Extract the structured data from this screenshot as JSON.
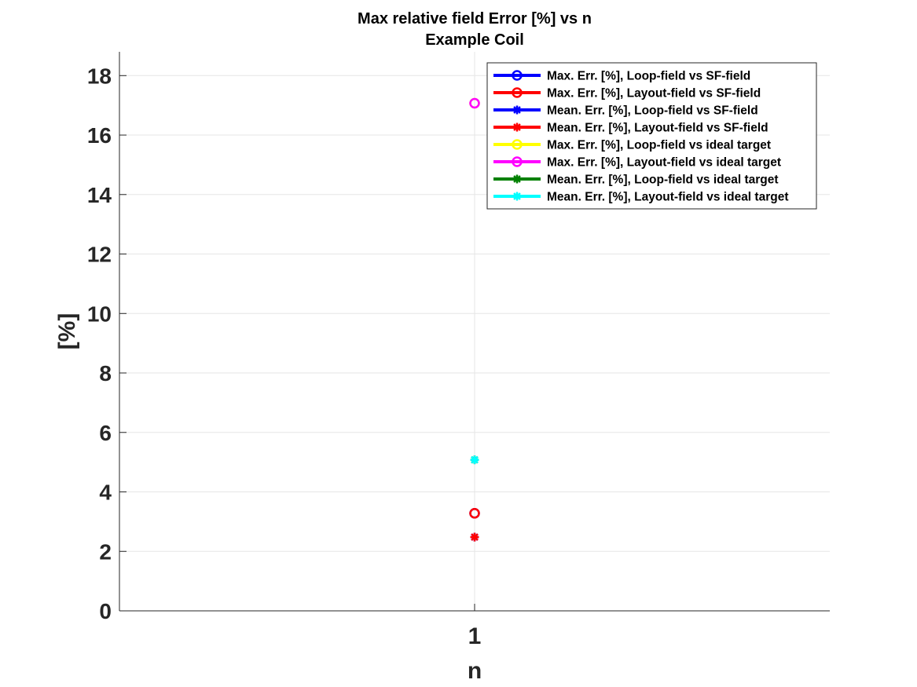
{
  "chart_data": {
    "type": "scatter",
    "title": "Max relative field Error [%] vs n",
    "subtitle": "Example Coil",
    "xlabel": "n",
    "ylabel": "[%]",
    "x_ticks": [
      1
    ],
    "y_ticks": [
      0,
      2,
      4,
      6,
      8,
      10,
      12,
      14,
      16,
      18
    ],
    "ylim": [
      0,
      18.8
    ],
    "grid": true,
    "legend_position": "top-right",
    "series": [
      {
        "name": "Max. Err. [%], Loop-field vs SF-field",
        "x": [
          1
        ],
        "y": [
          3.28
        ],
        "marker": "circle",
        "color": "#0000ff"
      },
      {
        "name": "Max. Err. [%], Layout-field vs SF-field",
        "x": [
          1
        ],
        "y": [
          3.28
        ],
        "marker": "circle",
        "color": "#ff0000"
      },
      {
        "name": "Mean. Err. [%], Loop-field vs SF-field",
        "x": [
          1
        ],
        "y": [
          2.48
        ],
        "marker": "star",
        "color": "#0000ff"
      },
      {
        "name": "Mean. Err. [%], Layout-field vs SF-field",
        "x": [
          1
        ],
        "y": [
          2.48
        ],
        "marker": "star",
        "color": "#ff0000"
      },
      {
        "name": "Max. Err. [%], Loop-field vs ideal target",
        "x": [
          1
        ],
        "y": [
          17.07
        ],
        "marker": "circle",
        "color": "#ffff00"
      },
      {
        "name": "Max. Err. [%], Layout-field vs ideal target",
        "x": [
          1
        ],
        "y": [
          17.07
        ],
        "marker": "circle",
        "color": "#ff00ff"
      },
      {
        "name": "Mean. Err. [%], Loop-field vs ideal target",
        "x": [
          1
        ],
        "y": [
          5.08
        ],
        "marker": "star",
        "color": "#008000"
      },
      {
        "name": "Mean. Err. [%], Layout-field vs ideal target",
        "x": [
          1
        ],
        "y": [
          5.08
        ],
        "marker": "star",
        "color": "#00ffff"
      }
    ]
  }
}
